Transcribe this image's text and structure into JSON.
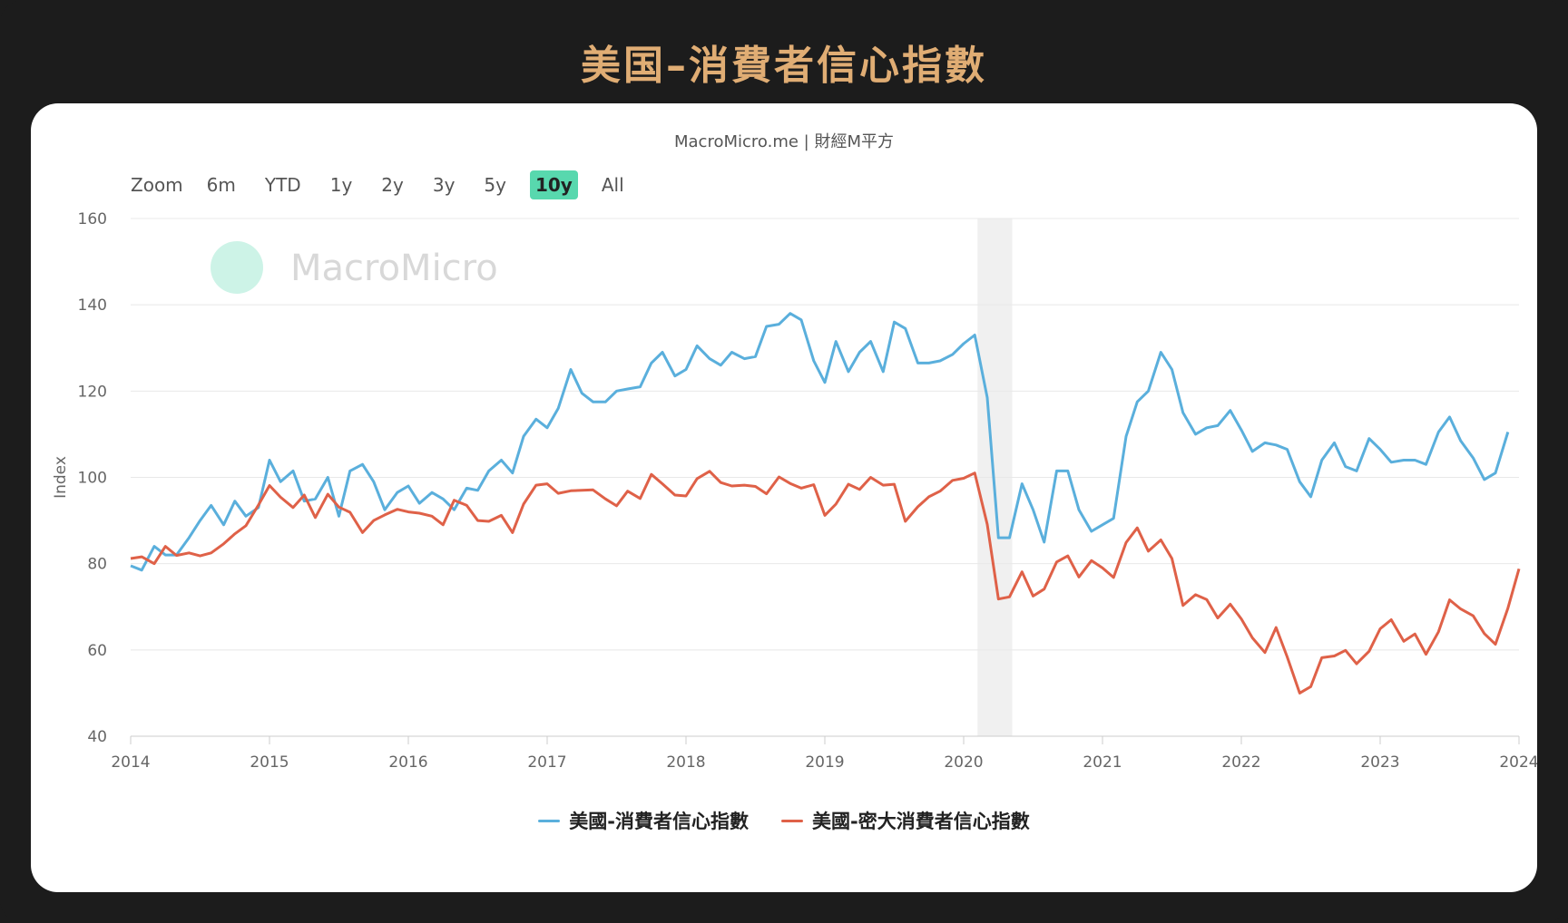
{
  "page_title": "美国–消費者信心指數",
  "credits": "MacroMicro.me | 財經M平方",
  "watermark": "MacroMicro",
  "range_selector": {
    "zoom_label": "Zoom",
    "buttons": [
      "6m",
      "YTD",
      "1y",
      "2y",
      "3y",
      "5y",
      "10y",
      "All"
    ],
    "active": "10y"
  },
  "colors": {
    "series_1": "#5aafdc",
    "series_2": "#df6148",
    "highlight_band": "#f0f0f0",
    "accent_title": "#e0ad74",
    "active_button": "#58d8ae"
  },
  "chart_data": {
    "type": "line",
    "ylabel": "Index",
    "ylim": [
      40,
      160
    ],
    "yticks": [
      40,
      60,
      80,
      100,
      120,
      140,
      160
    ],
    "xlim": [
      2014.0,
      2024.0
    ],
    "xticks": [
      "2014",
      "2015",
      "2016",
      "2017",
      "2018",
      "2019",
      "2020",
      "2021",
      "2022",
      "2023",
      "2024"
    ],
    "grid": true,
    "legend_position": "bottom",
    "shaded_band": [
      2020.1,
      2020.35
    ],
    "series": [
      {
        "name": "美國-消費者信心指數",
        "x": [
          2014.0,
          2014.08,
          2014.17,
          2014.25,
          2014.33,
          2014.42,
          2014.5,
          2014.58,
          2014.67,
          2014.75,
          2014.83,
          2014.92,
          2015.0,
          2015.08,
          2015.17,
          2015.25,
          2015.33,
          2015.42,
          2015.5,
          2015.58,
          2015.67,
          2015.75,
          2015.83,
          2015.92,
          2016.0,
          2016.08,
          2016.17,
          2016.25,
          2016.33,
          2016.42,
          2016.5,
          2016.58,
          2016.67,
          2016.75,
          2016.83,
          2016.92,
          2017.0,
          2017.08,
          2017.17,
          2017.25,
          2017.33,
          2017.42,
          2017.5,
          2017.58,
          2017.67,
          2017.75,
          2017.83,
          2017.92,
          2018.0,
          2018.08,
          2018.17,
          2018.25,
          2018.33,
          2018.42,
          2018.5,
          2018.58,
          2018.67,
          2018.75,
          2018.83,
          2018.92,
          2019.0,
          2019.08,
          2019.17,
          2019.25,
          2019.33,
          2019.42,
          2019.5,
          2019.58,
          2019.67,
          2019.75,
          2019.83,
          2019.92,
          2020.0,
          2020.08,
          2020.17,
          2020.25,
          2020.33,
          2020.42,
          2020.5,
          2020.58,
          2020.67,
          2020.75,
          2020.83,
          2020.92,
          2021.0,
          2021.08,
          2021.17,
          2021.25,
          2021.33,
          2021.42,
          2021.5,
          2021.58,
          2021.67,
          2021.75,
          2021.83,
          2021.92,
          2022.0,
          2022.08,
          2022.17,
          2022.25,
          2022.33,
          2022.42,
          2022.5,
          2022.58,
          2022.67,
          2022.75,
          2022.83,
          2022.92,
          2023.0,
          2023.08,
          2023.17,
          2023.25,
          2023.33,
          2023.42,
          2023.5,
          2023.58,
          2023.67,
          2023.75,
          2023.83,
          2023.92
        ],
        "values": [
          79.5,
          78.5,
          84,
          82,
          82,
          86,
          90,
          93.5,
          89,
          94.5,
          91,
          93,
          104,
          99,
          101.5,
          94.5,
          95,
          100,
          91,
          101.5,
          103,
          99,
          92.5,
          96.5,
          98,
          94,
          96.5,
          95,
          92.5,
          97.5,
          97,
          101.5,
          104,
          101,
          109.5,
          113.5,
          111.5,
          116,
          125,
          119.5,
          117.5,
          117.5,
          120,
          120.5,
          121,
          126.5,
          129,
          123.5,
          125,
          130.5,
          127.5,
          126,
          129,
          127.5,
          128,
          135,
          135.5,
          138,
          136.5,
          127,
          122,
          131.5,
          124.5,
          129,
          131.5,
          124.5,
          136,
          134.5,
          126.5,
          126.5,
          127,
          128.5,
          131,
          133,
          118.5,
          86,
          86,
          98.5,
          92.5,
          85,
          101.5,
          101.5,
          92.5,
          87.5,
          89,
          90.5,
          109.5,
          117.5,
          120,
          129,
          125,
          115,
          110,
          111.5,
          112,
          115.5,
          111,
          106,
          108,
          107.5,
          106.5,
          99,
          95.5,
          104,
          108,
          102.5,
          101.5,
          109,
          106.5,
          103.5,
          104,
          104,
          103,
          110.5,
          114,
          108.5,
          104.5,
          99.5,
          101,
          110.5
        ]
      },
      {
        "name": "美國-密大消費者信心指數",
        "x": [
          2014.0,
          2014.08,
          2014.17,
          2014.25,
          2014.33,
          2014.42,
          2014.5,
          2014.58,
          2014.67,
          2014.75,
          2014.83,
          2014.92,
          2015.0,
          2015.08,
          2015.17,
          2015.25,
          2015.33,
          2015.42,
          2015.5,
          2015.58,
          2015.67,
          2015.75,
          2015.83,
          2015.92,
          2016.0,
          2016.08,
          2016.17,
          2016.25,
          2016.33,
          2016.42,
          2016.5,
          2016.58,
          2016.67,
          2016.75,
          2016.83,
          2016.92,
          2017.0,
          2017.08,
          2017.17,
          2017.25,
          2017.33,
          2017.42,
          2017.5,
          2017.58,
          2017.67,
          2017.75,
          2017.83,
          2017.92,
          2018.0,
          2018.08,
          2018.17,
          2018.25,
          2018.33,
          2018.42,
          2018.5,
          2018.58,
          2018.67,
          2018.75,
          2018.83,
          2018.92,
          2019.0,
          2019.08,
          2019.17,
          2019.25,
          2019.33,
          2019.42,
          2019.5,
          2019.58,
          2019.67,
          2019.75,
          2019.83,
          2019.92,
          2020.0,
          2020.08,
          2020.17,
          2020.25,
          2020.33,
          2020.42,
          2020.5,
          2020.58,
          2020.67,
          2020.75,
          2020.83,
          2020.92,
          2021.0,
          2021.08,
          2021.17,
          2021.25,
          2021.33,
          2021.42,
          2021.5,
          2021.58,
          2021.67,
          2021.75,
          2021.83,
          2021.92,
          2022.0,
          2022.08,
          2022.17,
          2022.25,
          2022.33,
          2022.42,
          2022.5,
          2022.58,
          2022.67,
          2022.75,
          2022.83,
          2022.92,
          2023.0,
          2023.08,
          2023.17,
          2023.25,
          2023.33,
          2023.42,
          2023.5,
          2023.58,
          2023.67,
          2023.75,
          2023.83,
          2023.92,
          2024.0
        ],
        "values": [
          81.2,
          81.6,
          80,
          84,
          81.9,
          82.5,
          81.8,
          82.5,
          84.6,
          86.9,
          88.8,
          93.6,
          98.1,
          95.4,
          93,
          95.9,
          90.7,
          96.1,
          93.1,
          91.9,
          87.2,
          90,
          91.3,
          92.6,
          92,
          91.7,
          91,
          89,
          94.7,
          93.5,
          90,
          89.8,
          91.2,
          87.2,
          93.8,
          98.2,
          98.5,
          96.3,
          96.9,
          97,
          97.1,
          95,
          93.4,
          96.8,
          95.1,
          100.7,
          98.5,
          95.9,
          95.7,
          99.7,
          101.4,
          98.8,
          98,
          98.2,
          97.9,
          96.2,
          100.1,
          98.6,
          97.5,
          98.3,
          91.2,
          93.8,
          98.4,
          97.2,
          100,
          98.2,
          98.4,
          89.8,
          93.2,
          95.5,
          96.8,
          99.3,
          99.8,
          101,
          89.1,
          71.8,
          72.3,
          78.1,
          72.5,
          74.1,
          80.4,
          81.8,
          76.9,
          80.7,
          79,
          76.8,
          84.9,
          88.3,
          82.9,
          85.5,
          81.2,
          70.3,
          72.8,
          71.7,
          67.4,
          70.6,
          67.2,
          62.8,
          59.4,
          65.2,
          58.4,
          50,
          51.5,
          58.2,
          58.6,
          59.9,
          56.8,
          59.7,
          64.9,
          67,
          62,
          63.7,
          59,
          64.2,
          71.6,
          69.5,
          67.9,
          63.8,
          61.3,
          69.7,
          78.8
        ]
      }
    ]
  }
}
